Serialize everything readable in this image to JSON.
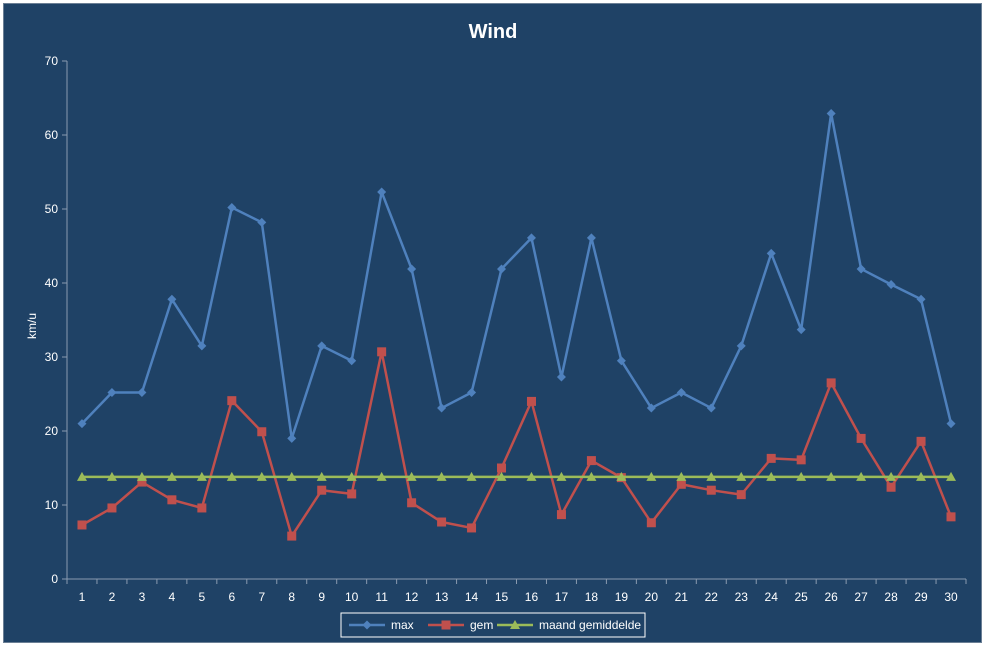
{
  "chart_data": {
    "type": "line",
    "title": "Wind",
    "xlabel": "",
    "ylabel": "km/u",
    "ylim": [
      0,
      70
    ],
    "yticks": [
      0,
      10,
      20,
      30,
      40,
      50,
      60,
      70
    ],
    "grid": false,
    "legend_position": "bottom",
    "categories": [
      "1",
      "2",
      "3",
      "4",
      "5",
      "6",
      "7",
      "8",
      "9",
      "10",
      "11",
      "12",
      "13",
      "14",
      "15",
      "16",
      "17",
      "18",
      "19",
      "20",
      "21",
      "22",
      "23",
      "24",
      "25",
      "26",
      "27",
      "28",
      "29",
      "30"
    ],
    "series": [
      {
        "name": "max",
        "color": "#4f81bd",
        "marker": "diamond",
        "values": [
          21,
          25.2,
          25.2,
          37.8,
          31.5,
          50.2,
          48.2,
          19,
          31.5,
          29.5,
          52.3,
          41.9,
          23.1,
          25.2,
          41.9,
          46.1,
          27.3,
          46.1,
          29.5,
          23.1,
          25.2,
          23.1,
          31.5,
          44,
          33.7,
          62.9,
          41.9,
          39.8,
          37.8,
          21
        ]
      },
      {
        "name": "gem",
        "color": "#c0504d",
        "marker": "square",
        "values": [
          7.3,
          9.6,
          13.1,
          10.7,
          9.6,
          24.1,
          19.9,
          5.8,
          12,
          11.5,
          30.7,
          10.3,
          7.7,
          6.9,
          15,
          24,
          8.7,
          16,
          13.7,
          7.6,
          12.8,
          12,
          11.4,
          16.3,
          16.1,
          26.5,
          19,
          12.4,
          18.6,
          8.4
        ]
      },
      {
        "name": "maand gemiddelde",
        "color": "#9bbb59",
        "marker": "triangle",
        "values": [
          13.8,
          13.8,
          13.8,
          13.8,
          13.8,
          13.8,
          13.8,
          13.8,
          13.8,
          13.8,
          13.8,
          13.8,
          13.8,
          13.8,
          13.8,
          13.8,
          13.8,
          13.8,
          13.8,
          13.8,
          13.8,
          13.8,
          13.8,
          13.8,
          13.8,
          13.8,
          13.8,
          13.8,
          13.8,
          13.8
        ]
      }
    ]
  }
}
